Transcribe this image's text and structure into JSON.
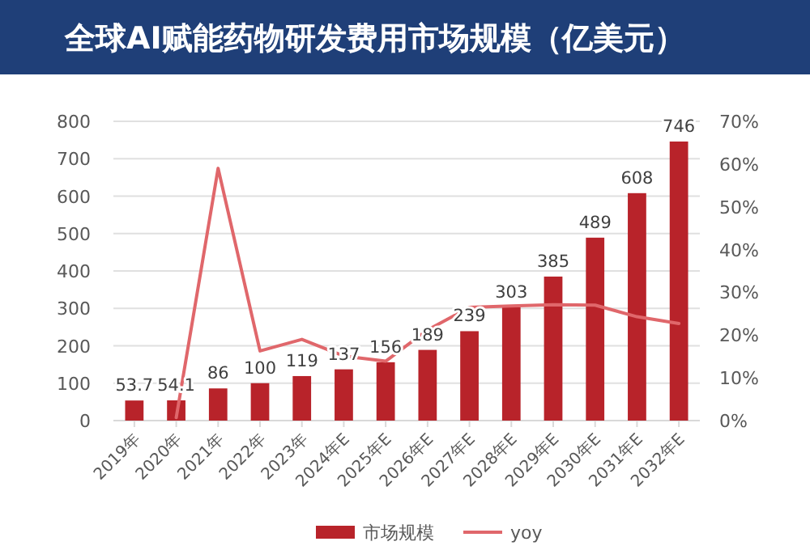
{
  "chart_data": {
    "type": "bar",
    "title": "全球AI赋能药物研发费用市场规模（亿美元）",
    "categories": [
      "2019年",
      "2020年",
      "2021年",
      "2022年",
      "2023年",
      "2024年E",
      "2025年E",
      "2026年E",
      "2027年E",
      "2028年E",
      "2029年E",
      "2030年E",
      "2031年E",
      "2032年E"
    ],
    "series": [
      {
        "name": "市场规模",
        "color": "#b8232a",
        "values": [
          53.7,
          54.1,
          86,
          100,
          119,
          137,
          156,
          189,
          239,
          303,
          385,
          489,
          608,
          746
        ],
        "value_labels": [
          "53.7",
          "54.1",
          "86",
          "100",
          "119",
          "137",
          "156",
          "189",
          "239",
          "303",
          "385",
          "489",
          "608",
          "746"
        ]
      },
      {
        "name": "yoy",
        "type": "line",
        "axis": "y2",
        "color": "#e0676b",
        "values": [
          null,
          0.7,
          59,
          16.3,
          19,
          15.1,
          13.9,
          21.2,
          26.5,
          26.8,
          27.1,
          27,
          24.3,
          22.7
        ]
      }
    ],
    "ylim": [
      0,
      800
    ],
    "yticks": [
      0,
      100,
      200,
      300,
      400,
      500,
      600,
      700,
      800
    ],
    "y2lim": [
      0,
      70
    ],
    "y2ticks": [
      {
        "value": 0,
        "label": "0%"
      },
      {
        "value": 10,
        "label": "10%"
      },
      {
        "value": 20,
        "label": "20%"
      },
      {
        "value": 30,
        "label": "30%"
      },
      {
        "value": 40,
        "label": "40%"
      },
      {
        "value": 50,
        "label": "50%"
      },
      {
        "value": 60,
        "label": "60%"
      },
      {
        "value": 70,
        "label": "70%"
      }
    ],
    "grid": "y",
    "legend": "bottom",
    "marker": "none"
  }
}
